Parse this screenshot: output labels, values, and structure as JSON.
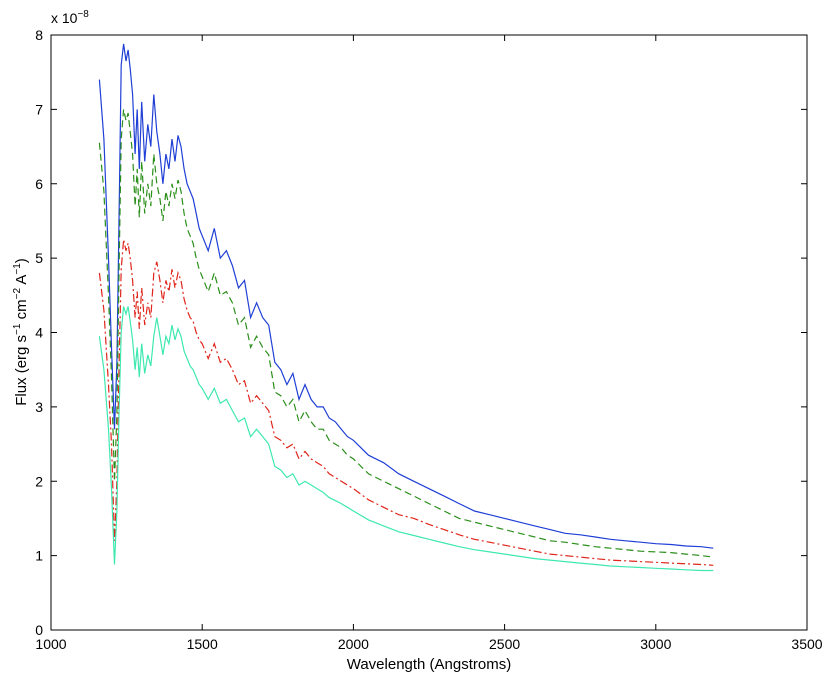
{
  "chart_data": {
    "type": "line",
    "xlabel": "Wavelength (Angstroms)",
    "ylabel_parts": {
      "pre": "Flux (erg s",
      "exp1": "−1",
      "mid": " cm",
      "exp2": "−2",
      "post1": " A",
      "exp3": "−1",
      "post2": ")"
    },
    "y_multiplier": {
      "base": "x 10",
      "exponent": "−8"
    },
    "xlim": [
      1000,
      3500
    ],
    "ylim": [
      0,
      8
    ],
    "xticks": [
      1000,
      1500,
      2000,
      2500,
      3000,
      3500
    ],
    "yticks": [
      0,
      1,
      2,
      3,
      4,
      5,
      6,
      7,
      8
    ],
    "grid": false,
    "series": [
      {
        "color": "#1f3fd6",
        "style": "solid",
        "x": [
          1160,
          1175,
          1190,
          1200,
          1210,
          1218,
          1225,
          1232,
          1240,
          1248,
          1255,
          1262,
          1270,
          1278,
          1285,
          1292,
          1300,
          1310,
          1320,
          1330,
          1340,
          1350,
          1360,
          1370,
          1380,
          1390,
          1400,
          1410,
          1420,
          1430,
          1440,
          1450,
          1460,
          1470,
          1480,
          1490,
          1500,
          1520,
          1540,
          1560,
          1580,
          1600,
          1620,
          1640,
          1660,
          1680,
          1700,
          1720,
          1740,
          1760,
          1780,
          1800,
          1820,
          1840,
          1860,
          1880,
          1900,
          1920,
          1940,
          1960,
          1980,
          2000,
          2050,
          2100,
          2150,
          2200,
          2250,
          2300,
          2350,
          2400,
          2450,
          2500,
          2550,
          2600,
          2650,
          2700,
          2750,
          2800,
          2850,
          2900,
          2950,
          3000,
          3050,
          3100,
          3150,
          3190
        ],
        "y": [
          7.4,
          6.6,
          5.0,
          3.8,
          2.7,
          3.6,
          5.5,
          7.6,
          7.88,
          7.65,
          7.8,
          7.55,
          7.2,
          6.4,
          7.0,
          6.2,
          7.1,
          6.3,
          6.8,
          6.5,
          7.2,
          6.7,
          6.4,
          6.0,
          6.4,
          6.2,
          6.6,
          6.3,
          6.65,
          6.5,
          6.2,
          6.0,
          5.9,
          5.8,
          5.6,
          5.4,
          5.3,
          5.1,
          5.4,
          5.0,
          5.1,
          4.9,
          4.6,
          4.7,
          4.2,
          4.4,
          4.2,
          4.1,
          3.6,
          3.5,
          3.3,
          3.45,
          3.1,
          3.3,
          3.1,
          3.0,
          3.0,
          2.85,
          2.8,
          2.7,
          2.6,
          2.55,
          2.35,
          2.25,
          2.1,
          2.0,
          1.9,
          1.8,
          1.7,
          1.6,
          1.55,
          1.5,
          1.45,
          1.4,
          1.35,
          1.3,
          1.28,
          1.25,
          1.22,
          1.2,
          1.18,
          1.16,
          1.15,
          1.13,
          1.12,
          1.1
        ]
      },
      {
        "color": "#2a8f1a",
        "style": "dashed",
        "x": [
          1160,
          1175,
          1190,
          1200,
          1210,
          1218,
          1225,
          1232,
          1240,
          1248,
          1255,
          1262,
          1270,
          1278,
          1285,
          1292,
          1300,
          1310,
          1320,
          1330,
          1340,
          1350,
          1360,
          1370,
          1380,
          1390,
          1400,
          1410,
          1420,
          1430,
          1440,
          1450,
          1460,
          1470,
          1480,
          1490,
          1500,
          1520,
          1540,
          1560,
          1580,
          1600,
          1620,
          1640,
          1660,
          1680,
          1700,
          1720,
          1740,
          1760,
          1780,
          1800,
          1820,
          1840,
          1860,
          1880,
          1900,
          1920,
          1940,
          1960,
          1980,
          2000,
          2050,
          2100,
          2150,
          2200,
          2250,
          2300,
          2350,
          2400,
          2450,
          2500,
          2550,
          2600,
          2650,
          2700,
          2750,
          2800,
          2850,
          2900,
          2950,
          3000,
          3050,
          3100,
          3150,
          3190
        ],
        "y": [
          6.55,
          5.9,
          4.5,
          3.4,
          2.0,
          2.9,
          4.8,
          6.6,
          7.0,
          6.85,
          6.95,
          6.7,
          6.4,
          5.7,
          6.2,
          5.55,
          6.3,
          5.6,
          6.0,
          5.7,
          6.4,
          6.0,
          5.8,
          5.5,
          5.9,
          5.7,
          6.0,
          5.8,
          6.05,
          5.9,
          5.6,
          5.4,
          5.3,
          5.2,
          5.0,
          4.85,
          4.75,
          4.55,
          4.8,
          4.5,
          4.55,
          4.4,
          4.1,
          4.2,
          3.8,
          3.95,
          3.8,
          3.7,
          3.2,
          3.15,
          3.0,
          3.1,
          2.8,
          2.95,
          2.8,
          2.7,
          2.7,
          2.55,
          2.5,
          2.45,
          2.35,
          2.3,
          2.1,
          2.0,
          1.9,
          1.8,
          1.7,
          1.6,
          1.5,
          1.45,
          1.4,
          1.35,
          1.3,
          1.25,
          1.2,
          1.18,
          1.15,
          1.12,
          1.1,
          1.08,
          1.06,
          1.05,
          1.04,
          1.02,
          1.0,
          0.98
        ]
      },
      {
        "color": "#e0251b",
        "style": "dashdot",
        "x": [
          1160,
          1175,
          1190,
          1200,
          1210,
          1218,
          1225,
          1232,
          1240,
          1248,
          1255,
          1262,
          1270,
          1278,
          1285,
          1292,
          1300,
          1310,
          1320,
          1330,
          1340,
          1350,
          1360,
          1370,
          1380,
          1390,
          1400,
          1410,
          1420,
          1430,
          1440,
          1450,
          1460,
          1470,
          1480,
          1490,
          1500,
          1520,
          1540,
          1560,
          1580,
          1600,
          1620,
          1640,
          1660,
          1680,
          1700,
          1720,
          1740,
          1760,
          1780,
          1800,
          1820,
          1840,
          1860,
          1880,
          1900,
          1920,
          1940,
          1960,
          1980,
          2000,
          2050,
          2100,
          2150,
          2200,
          2250,
          2300,
          2350,
          2400,
          2450,
          2500,
          2550,
          2600,
          2650,
          2700,
          2750,
          2800,
          2850,
          2900,
          2950,
          3000,
          3050,
          3100,
          3150,
          3190
        ],
        "y": [
          4.8,
          4.3,
          3.3,
          2.5,
          1.2,
          2.0,
          3.5,
          4.85,
          5.25,
          5.1,
          5.2,
          5.0,
          4.7,
          4.2,
          4.55,
          4.05,
          4.6,
          4.1,
          4.4,
          4.2,
          4.8,
          4.95,
          4.7,
          4.4,
          4.7,
          4.55,
          4.85,
          4.6,
          4.8,
          4.7,
          4.45,
          4.3,
          4.2,
          4.15,
          4.0,
          3.9,
          3.85,
          3.65,
          3.85,
          3.6,
          3.65,
          3.5,
          3.3,
          3.35,
          3.05,
          3.15,
          3.05,
          2.95,
          2.6,
          2.55,
          2.45,
          2.5,
          2.3,
          2.4,
          2.3,
          2.25,
          2.2,
          2.1,
          2.05,
          2.0,
          1.95,
          1.9,
          1.75,
          1.65,
          1.55,
          1.5,
          1.42,
          1.35,
          1.28,
          1.22,
          1.18,
          1.14,
          1.1,
          1.06,
          1.02,
          1.0,
          0.98,
          0.96,
          0.94,
          0.93,
          0.92,
          0.91,
          0.9,
          0.89,
          0.88,
          0.87
        ]
      },
      {
        "color": "#3ee8b0",
        "style": "solid",
        "x": [
          1160,
          1175,
          1190,
          1200,
          1210,
          1218,
          1225,
          1232,
          1240,
          1248,
          1255,
          1262,
          1270,
          1278,
          1285,
          1292,
          1300,
          1310,
          1320,
          1330,
          1340,
          1350,
          1360,
          1370,
          1380,
          1390,
          1400,
          1410,
          1420,
          1430,
          1440,
          1450,
          1460,
          1470,
          1480,
          1490,
          1500,
          1520,
          1540,
          1560,
          1580,
          1600,
          1620,
          1640,
          1660,
          1680,
          1700,
          1720,
          1740,
          1760,
          1780,
          1800,
          1820,
          1840,
          1860,
          1880,
          1900,
          1920,
          1940,
          1960,
          1980,
          2000,
          2050,
          2100,
          2150,
          2200,
          2250,
          2300,
          2350,
          2400,
          2450,
          2500,
          2550,
          2600,
          2650,
          2700,
          2750,
          2800,
          2850,
          2900,
          2950,
          3000,
          3050,
          3100,
          3150,
          3190
        ],
        "y": [
          3.95,
          3.5,
          2.7,
          1.9,
          0.88,
          1.6,
          2.9,
          4.0,
          4.35,
          4.25,
          4.35,
          4.15,
          3.9,
          3.5,
          3.8,
          3.4,
          3.85,
          3.45,
          3.7,
          3.55,
          3.95,
          4.2,
          3.95,
          3.7,
          3.95,
          3.85,
          4.1,
          3.9,
          4.05,
          3.95,
          3.75,
          3.65,
          3.55,
          3.5,
          3.4,
          3.3,
          3.25,
          3.1,
          3.25,
          3.05,
          3.1,
          2.95,
          2.8,
          2.85,
          2.6,
          2.7,
          2.6,
          2.5,
          2.2,
          2.15,
          2.05,
          2.1,
          1.95,
          2.0,
          1.95,
          1.9,
          1.85,
          1.78,
          1.74,
          1.7,
          1.65,
          1.6,
          1.48,
          1.4,
          1.32,
          1.27,
          1.22,
          1.17,
          1.12,
          1.08,
          1.05,
          1.02,
          0.99,
          0.96,
          0.94,
          0.92,
          0.9,
          0.88,
          0.86,
          0.85,
          0.84,
          0.83,
          0.82,
          0.81,
          0.8,
          0.8
        ]
      }
    ]
  }
}
